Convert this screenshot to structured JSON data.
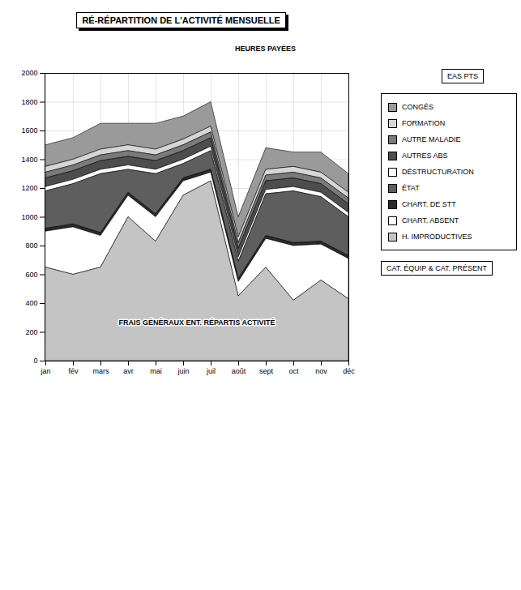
{
  "chart_data": {
    "type": "area",
    "title": "RÉ-RÉPARTITION DE L'ACTIVITÉ MENSUELLE",
    "stacked": true,
    "categories": [
      "jan",
      "fév",
      "mars",
      "avr",
      "mai",
      "juin",
      "juil",
      "août",
      "sept",
      "oct",
      "nov",
      "déc"
    ],
    "series": [
      {
        "name": "CONGÉS",
        "color": "#9a9a9a",
        "values": [
          150,
          150,
          180,
          150,
          180,
          160,
          170,
          140,
          150,
          100,
          140,
          130
        ]
      },
      {
        "name": "FORMATION",
        "color": "#d6d6d6",
        "values": [
          40,
          40,
          40,
          40,
          40,
          40,
          40,
          40,
          40,
          40,
          40,
          40
        ]
      },
      {
        "name": "AUTRE MALADIE",
        "color": "#7a7a7a",
        "values": [
          40,
          40,
          40,
          40,
          40,
          40,
          40,
          40,
          40,
          40,
          40,
          40
        ]
      },
      {
        "name": "AUTRES ABS",
        "color": "#4d4d4d",
        "values": [
          60,
          60,
          60,
          60,
          60,
          60,
          60,
          60,
          60,
          60,
          60,
          60
        ]
      },
      {
        "name": "DÉSTRUCTURATION",
        "color": "#ffffff",
        "values": [
          30,
          30,
          30,
          30,
          30,
          30,
          30,
          30,
          30,
          30,
          30,
          30
        ]
      },
      {
        "name": "ÉTAT",
        "color": "#5e5e5e",
        "values": [
          260,
          280,
          410,
          160,
          280,
          100,
          130,
          120,
          290,
          360,
          310,
          270
        ]
      },
      {
        "name": "CHART. DE STT",
        "color": "#2b2b2b",
        "values": [
          20,
          20,
          20,
          20,
          20,
          20,
          20,
          20,
          20,
          20,
          20,
          20
        ]
      },
      {
        "name": "CHART. ABSENT",
        "color": "#ffffff",
        "values": [
          250,
          330,
          220,
          150,
          170,
          100,
          60,
          100,
          200,
          380,
          250,
          280
        ]
      },
      {
        "name": "H. IMPRODUCTIVES",
        "color": "#c4c4c4",
        "values": [
          650,
          600,
          650,
          1000,
          830,
          1150,
          1250,
          450,
          650,
          420,
          560,
          430
        ]
      }
    ],
    "ylim": [
      0,
      2000
    ],
    "yticks": [
      0,
      200,
      400,
      600,
      800,
      1000,
      1200,
      1400,
      1600,
      1800,
      2000
    ],
    "grid": true,
    "legend": "right",
    "annotations": [
      "HEURES PAYÉES",
      "FRAIS GÉNÉRAUX ENT. RÉPARTIS ACTIVITÉ",
      "EAS PTS",
      "CAT. ÉQUIP & CAT. PRÉSENT"
    ]
  }
}
